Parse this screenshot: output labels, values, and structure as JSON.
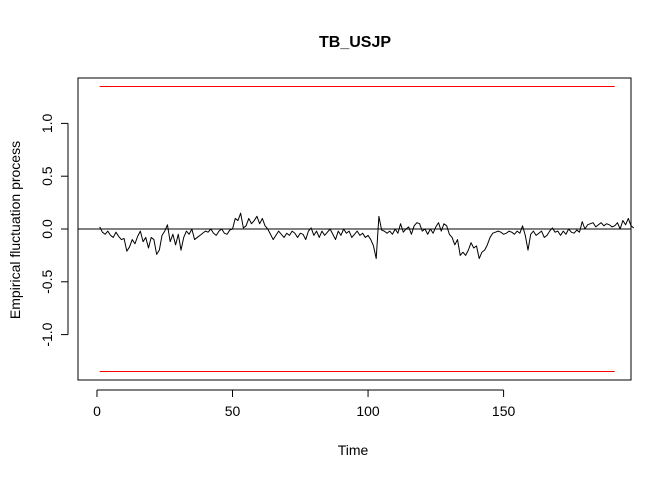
{
  "chart_data": {
    "type": "line",
    "title": "TB_USJP",
    "xlabel": "Time",
    "ylabel": "Empirical fluctuation process",
    "xlim": [
      -7,
      197
    ],
    "ylim": [
      -1.43,
      1.43
    ],
    "x_ticks": [
      0,
      50,
      100,
      150
    ],
    "y_ticks": [
      -1.0,
      -0.5,
      0.0,
      0.5,
      1.0
    ],
    "x_tick_labels": [
      "0",
      "50",
      "100",
      "150"
    ],
    "y_tick_labels": [
      "-1.0",
      "-0.5",
      "0.0",
      "0.5",
      "1.0"
    ],
    "boundaries": {
      "upper": 1.35,
      "lower": -1.35,
      "x_range": [
        1,
        191
      ],
      "color": "#FF0000"
    },
    "reference_line": {
      "y": 0,
      "color": "#000000"
    },
    "grid": false,
    "series": [
      {
        "color": "#000000",
        "x_start": 1,
        "values": [
          0.02,
          -0.03,
          -0.05,
          -0.02,
          -0.06,
          -0.08,
          -0.03,
          -0.07,
          -0.1,
          -0.09,
          -0.21,
          -0.17,
          -0.1,
          -0.14,
          -0.07,
          -0.02,
          -0.12,
          -0.08,
          -0.18,
          -0.08,
          -0.1,
          -0.24,
          -0.2,
          -0.06,
          -0.02,
          0.04,
          -0.12,
          -0.05,
          -0.15,
          -0.05,
          -0.2,
          -0.08,
          -0.02,
          -0.05,
          0.0,
          -0.1,
          -0.08,
          -0.06,
          -0.04,
          -0.02,
          -0.03,
          0.0,
          -0.04,
          -0.06,
          -0.02,
          0.0,
          -0.04,
          -0.05,
          -0.01,
          0.0,
          0.1,
          0.08,
          0.15,
          0.01,
          0.03,
          0.1,
          0.05,
          0.08,
          0.12,
          0.05,
          0.1,
          0.03,
          0.0,
          -0.05,
          -0.1,
          -0.06,
          -0.02,
          -0.05,
          -0.08,
          -0.04,
          -0.06,
          -0.02,
          -0.04,
          -0.08,
          -0.04,
          -0.05,
          -0.1,
          -0.02,
          0.01,
          -0.06,
          -0.02,
          -0.08,
          -0.02,
          -0.06,
          -0.03,
          0.0,
          -0.05,
          -0.1,
          -0.02,
          -0.06,
          0.0,
          -0.04,
          -0.02,
          -0.08,
          -0.05,
          -0.02,
          -0.06,
          -0.04,
          -0.08,
          -0.06,
          -0.1,
          -0.16,
          -0.28,
          0.12,
          -0.01,
          -0.02,
          -0.04,
          -0.02,
          -0.05,
          0.0,
          -0.04,
          0.05,
          -0.03,
          0.0,
          0.02,
          -0.05,
          0.03,
          0.06,
          0.05,
          -0.02,
          0.0,
          -0.05,
          0.0,
          -0.04,
          0.02,
          0.06,
          -0.02,
          0.05,
          0.03,
          -0.05,
          -0.08,
          -0.15,
          -0.1,
          -0.25,
          -0.22,
          -0.25,
          -0.2,
          -0.13,
          -0.18,
          -0.16,
          -0.28,
          -0.22,
          -0.2,
          -0.15,
          -0.08,
          -0.04,
          -0.03,
          -0.02,
          -0.03,
          -0.05,
          -0.04,
          -0.02,
          -0.03,
          -0.05,
          -0.02,
          -0.04,
          0.03,
          -0.06,
          -0.2,
          -0.05,
          -0.02,
          -0.06,
          -0.04,
          -0.02,
          -0.08,
          -0.06,
          -0.02,
          0.01,
          -0.03,
          -0.02,
          -0.06,
          -0.02,
          -0.05,
          0.0,
          -0.03,
          -0.04,
          -0.01,
          -0.03,
          0.07,
          0.0,
          0.04,
          0.05,
          0.06,
          0.02,
          0.04,
          0.06,
          0.03,
          0.05,
          0.04,
          0.02,
          0.03,
          0.06,
          0.0,
          0.08,
          0.04,
          0.1,
          0.03,
          0.01
        ]
      }
    ]
  }
}
